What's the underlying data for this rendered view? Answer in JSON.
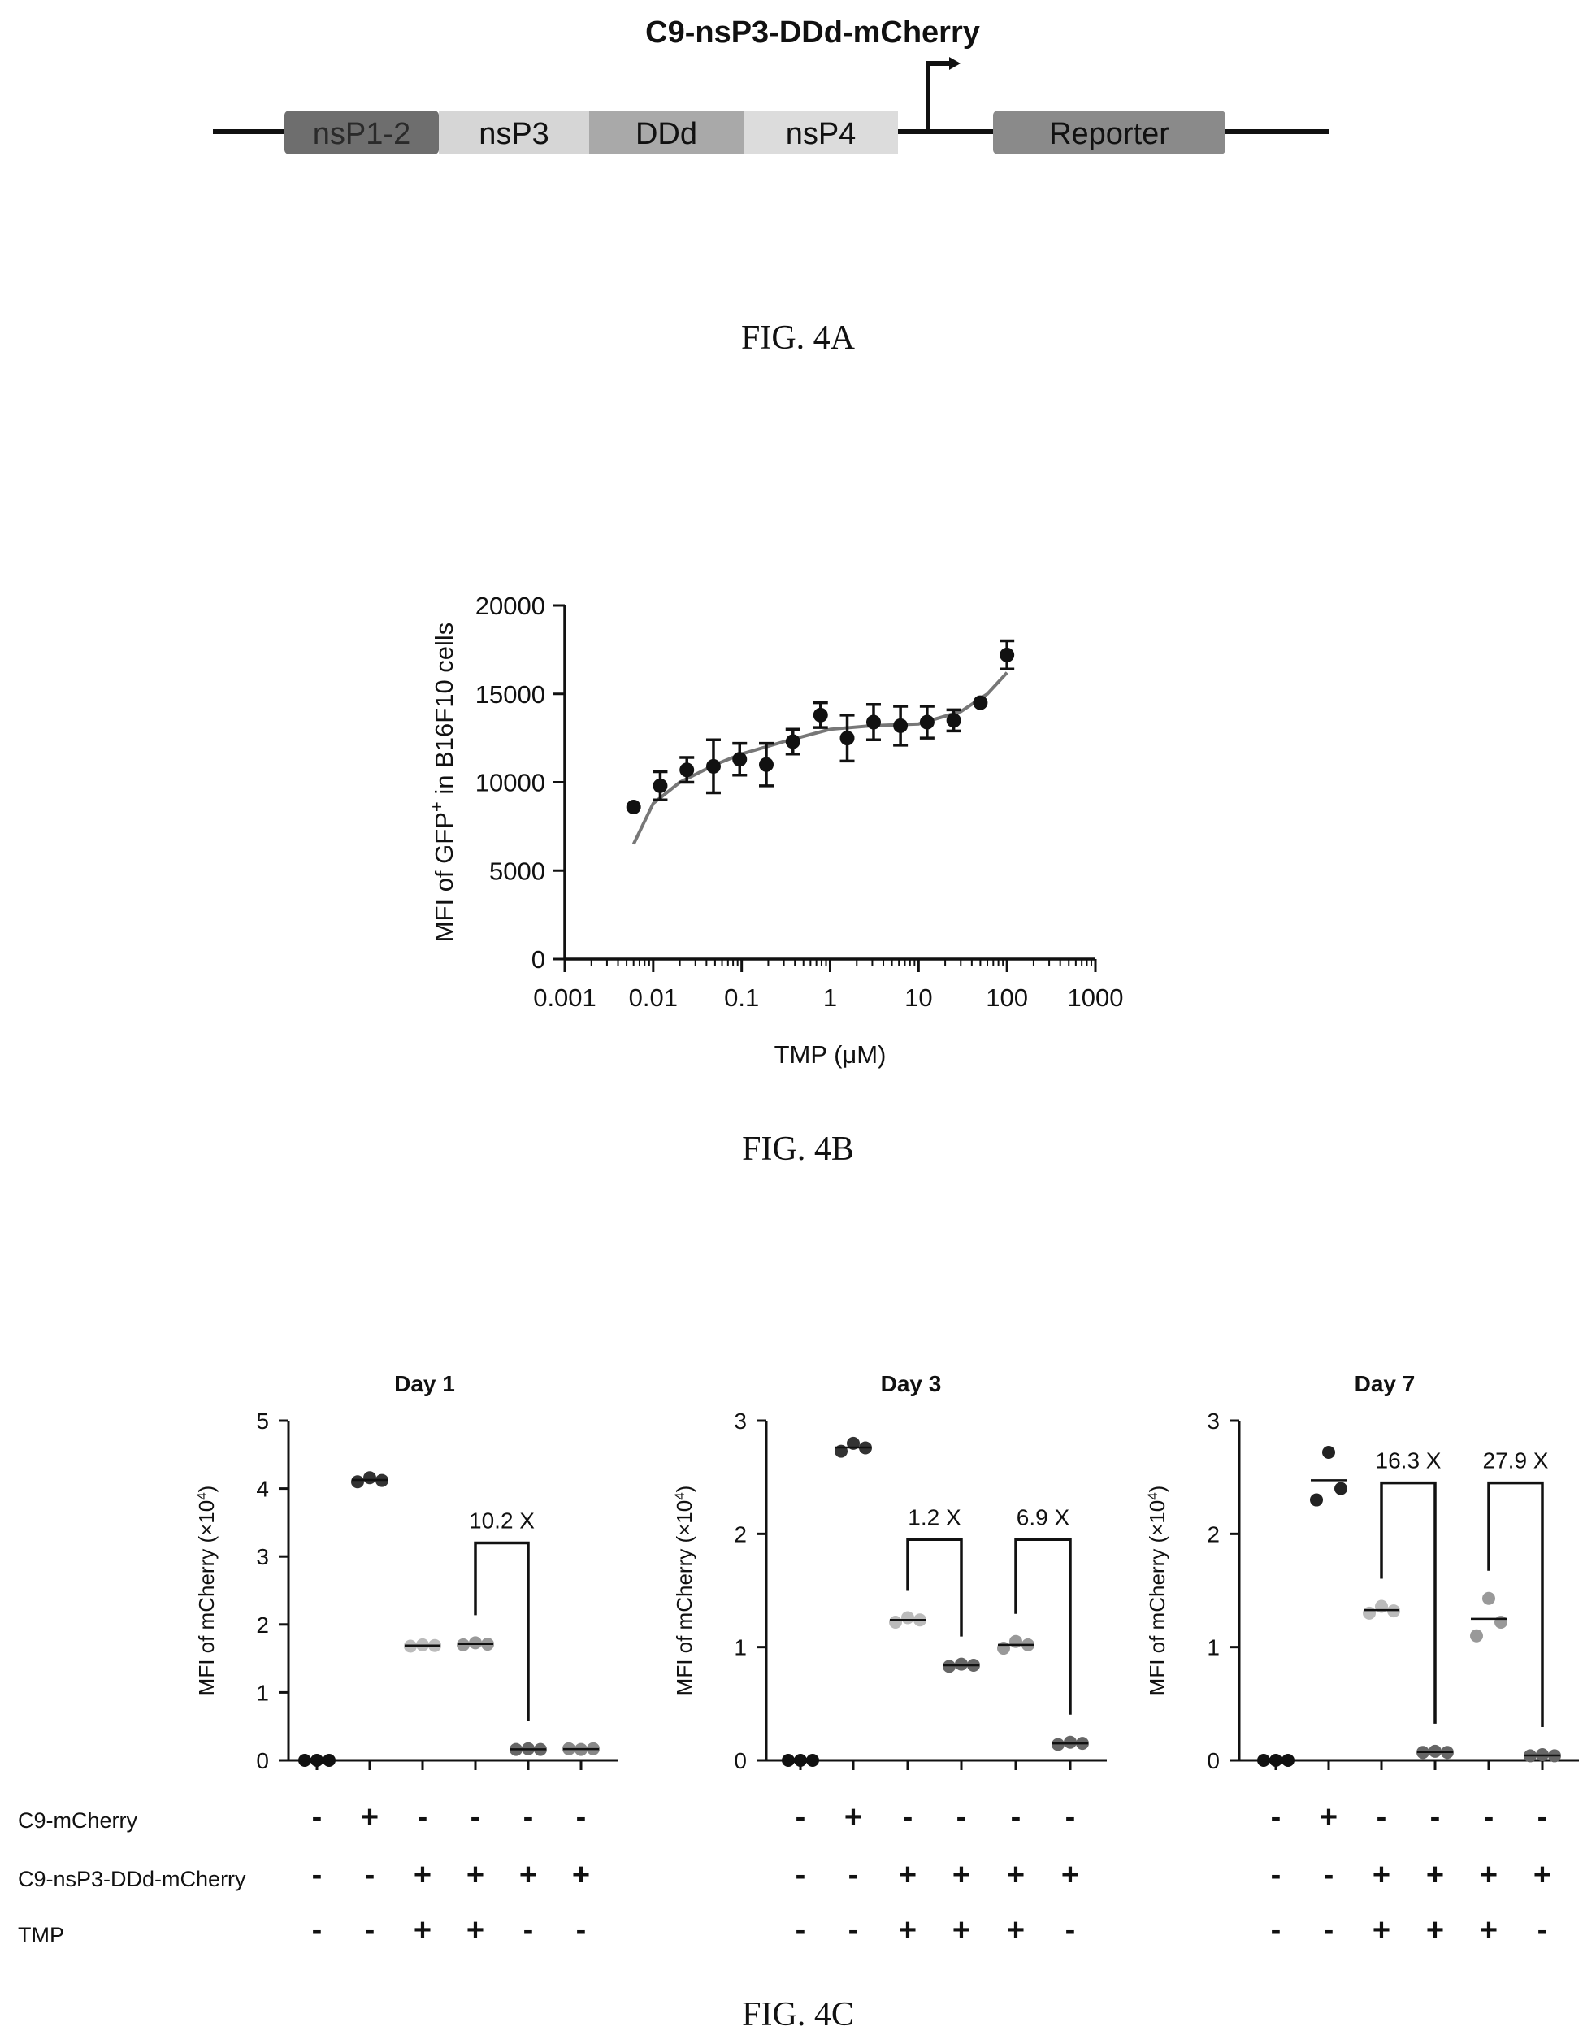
{
  "fig4a": {
    "title": "C9-nsP3-DDd-mCherry",
    "caption": "FIG. 4A",
    "segments": [
      {
        "label": "nsP1-2",
        "color": "#6e6e6e",
        "text_color": "#2a2a2a"
      },
      {
        "label": "nsP3",
        "color": "#d6d6d6",
        "text_color": "#111111"
      },
      {
        "label": "DDd",
        "color": "#a9a9a9",
        "text_color": "#111111"
      },
      {
        "label": "nsP4",
        "color": "#dcdcdc",
        "text_color": "#111111"
      },
      {
        "label": "Reporter",
        "color": "#8a8a8a",
        "text_color": "#111111"
      }
    ]
  },
  "fig4b": {
    "caption": "FIG. 4B",
    "chart_data": {
      "type": "scatter",
      "xscale": "log",
      "xlim": [
        0.001,
        1000
      ],
      "ylim": [
        0,
        20000
      ],
      "xticks": [
        "0.001",
        "0.01",
        "0.1",
        "1",
        "10",
        "100",
        "1000"
      ],
      "yticks": [
        "0",
        "5000",
        "10000",
        "15000",
        "20000"
      ],
      "xlabel": "TMP (μM)",
      "ylabel_main": "MFI of GFP",
      "ylabel_sup": "+",
      "ylabel_tail": " in B16F10 cells",
      "points": [
        {
          "x": 0.006,
          "y": 8600,
          "err": 0
        },
        {
          "x": 0.012,
          "y": 9800,
          "err": 800
        },
        {
          "x": 0.024,
          "y": 10700,
          "err": 700
        },
        {
          "x": 0.048,
          "y": 10900,
          "err": 1500
        },
        {
          "x": 0.095,
          "y": 11300,
          "err": 900
        },
        {
          "x": 0.19,
          "y": 11000,
          "err": 1200
        },
        {
          "x": 0.38,
          "y": 12300,
          "err": 700
        },
        {
          "x": 0.78,
          "y": 13800,
          "err": 700
        },
        {
          "x": 1.56,
          "y": 12500,
          "err": 1300
        },
        {
          "x": 3.1,
          "y": 13400,
          "err": 1000
        },
        {
          "x": 6.25,
          "y": 13200,
          "err": 1100
        },
        {
          "x": 12.5,
          "y": 13400,
          "err": 900
        },
        {
          "x": 25,
          "y": 13500,
          "err": 600
        },
        {
          "x": 50,
          "y": 14500,
          "err": 0
        },
        {
          "x": 100,
          "y": 17200,
          "err": 800
        }
      ],
      "fit": [
        {
          "x": 0.006,
          "y": 6500
        },
        {
          "x": 0.01,
          "y": 8800
        },
        {
          "x": 0.02,
          "y": 10000
        },
        {
          "x": 0.05,
          "y": 11000
        },
        {
          "x": 0.1,
          "y": 11600
        },
        {
          "x": 0.3,
          "y": 12300
        },
        {
          "x": 1,
          "y": 13000
        },
        {
          "x": 3,
          "y": 13200
        },
        {
          "x": 10,
          "y": 13300
        },
        {
          "x": 30,
          "y": 14000
        },
        {
          "x": 60,
          "y": 15000
        },
        {
          "x": 100,
          "y": 16200
        }
      ]
    }
  },
  "fig4c": {
    "caption": "FIG. 4C",
    "ylabel_main": "MFI of mCherry (×10",
    "ylabel_sup": "4",
    "ylabel_tail": ")",
    "row_labels": [
      "C9-mCherry",
      "C9-nsP3-DDd-mCherry",
      "TMP"
    ],
    "chart_data": [
      {
        "type": "scatter",
        "title": "Day 1",
        "ylim": [
          0,
          5
        ],
        "yticks": [
          "0",
          "1",
          "2",
          "3",
          "4",
          "5"
        ],
        "groups": [
          {
            "values": [
              0.0,
              0.0,
              0.0
            ],
            "color": "#111111"
          },
          {
            "values": [
              4.1,
              4.16,
              4.12
            ],
            "color": "#333333"
          },
          {
            "values": [
              1.68,
              1.7,
              1.69
            ],
            "color": "#bbbbbb"
          },
          {
            "values": [
              1.7,
              1.73,
              1.71
            ],
            "color": "#999999"
          },
          {
            "values": [
              0.16,
              0.17,
              0.16
            ],
            "color": "#666666"
          },
          {
            "values": [
              0.17,
              0.16,
              0.17
            ],
            "color": "#888888"
          }
        ],
        "brackets": [
          {
            "from": 3,
            "to": 4,
            "label": "10.2 X",
            "top": 3.2
          }
        ],
        "signs": [
          [
            "-",
            "+",
            "-",
            "-",
            "-",
            "-"
          ],
          [
            "-",
            "-",
            "+",
            "+",
            "+",
            "+"
          ],
          [
            "-",
            "-",
            "+",
            "+",
            "-",
            "-"
          ]
        ]
      },
      {
        "type": "scatter",
        "title": "Day 3",
        "ylim": [
          0,
          3
        ],
        "yticks": [
          "0",
          "1",
          "2",
          "3"
        ],
        "groups": [
          {
            "values": [
              0.0,
              0.0,
              0.0
            ],
            "color": "#111111"
          },
          {
            "values": [
              2.73,
              2.8,
              2.76
            ],
            "color": "#333333"
          },
          {
            "values": [
              1.22,
              1.26,
              1.24
            ],
            "color": "#bbbbbb"
          },
          {
            "values": [
              0.83,
              0.85,
              0.84
            ],
            "color": "#666666"
          },
          {
            "values": [
              0.99,
              1.05,
              1.02
            ],
            "color": "#999999"
          },
          {
            "values": [
              0.14,
              0.16,
              0.15
            ],
            "color": "#666666"
          }
        ],
        "brackets": [
          {
            "from": 2,
            "to": 3,
            "label": "1.2 X",
            "top": 1.95
          },
          {
            "from": 4,
            "to": 5,
            "label": "6.9 X",
            "top": 1.95
          }
        ],
        "signs": [
          [
            "-",
            "+",
            "-",
            "-",
            "-",
            "-"
          ],
          [
            "-",
            "-",
            "+",
            "+",
            "+",
            "+"
          ],
          [
            "-",
            "-",
            "+",
            "+",
            "+",
            "-"
          ]
        ]
      },
      {
        "type": "scatter",
        "title": "Day 7",
        "ylim": [
          0,
          3
        ],
        "yticks": [
          "0",
          "1",
          "2",
          "3"
        ],
        "groups": [
          {
            "values": [
              0.0,
              0.0,
              0.0
            ],
            "color": "#111111"
          },
          {
            "values": [
              2.3,
              2.72,
              2.4
            ],
            "color": "#222222"
          },
          {
            "values": [
              1.3,
              1.36,
              1.32
            ],
            "color": "#bbbbbb"
          },
          {
            "values": [
              0.07,
              0.08,
              0.07
            ],
            "color": "#666666"
          },
          {
            "values": [
              1.1,
              1.43,
              1.22
            ],
            "color": "#999999"
          },
          {
            "values": [
              0.04,
              0.05,
              0.04
            ],
            "color": "#666666"
          }
        ],
        "brackets": [
          {
            "from": 2,
            "to": 3,
            "label": "16.3 X",
            "top": 2.45
          },
          {
            "from": 4,
            "to": 5,
            "label": "27.9 X",
            "top": 2.45
          }
        ],
        "signs": [
          [
            "-",
            "+",
            "-",
            "-",
            "-",
            "-"
          ],
          [
            "-",
            "-",
            "+",
            "+",
            "+",
            "+"
          ],
          [
            "-",
            "-",
            "+",
            "+",
            "+",
            "-"
          ]
        ]
      }
    ]
  }
}
